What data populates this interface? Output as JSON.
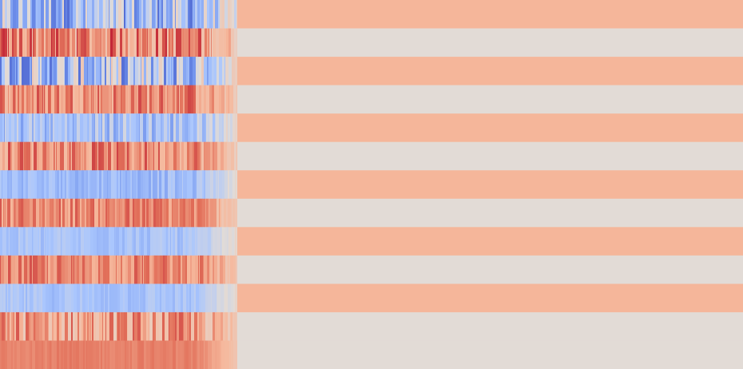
{
  "chart_data": {
    "type": "heatmap",
    "title": "",
    "xlabel": "",
    "ylabel": "",
    "colormap": "coolwarm",
    "value_range": [
      -1,
      1
    ],
    "palette": {
      "blue_strong": "#3b5fd9",
      "blue_mid": "#7ea2f2",
      "blue_light": "#b9cdfb",
      "neutral": "#e2dbd6",
      "salmon": "#f6b89c",
      "red_mid": "#e0705a",
      "red_strong": "#b51d2a"
    },
    "n_rows": 13,
    "n_cols": 930,
    "active_cols": 297,
    "rows": [
      {
        "active_mean": -0.35,
        "active_variance": 0.45,
        "tail_value": 0.36
      },
      {
        "active_mean": 0.55,
        "active_variance": 0.35,
        "tail_value": 0.0
      },
      {
        "active_mean": -0.3,
        "active_variance": 0.5,
        "tail_value": 0.36
      },
      {
        "active_mean": 0.55,
        "active_variance": 0.25,
        "tail_value": 0.0
      },
      {
        "active_mean": -0.3,
        "active_variance": 0.25,
        "tail_value": 0.36
      },
      {
        "active_mean": 0.55,
        "active_variance": 0.25,
        "tail_value": 0.0
      },
      {
        "active_mean": -0.35,
        "active_variance": 0.12,
        "tail_value": 0.36
      },
      {
        "active_mean": 0.55,
        "active_variance": 0.2,
        "tail_value": 0.0
      },
      {
        "active_mean": -0.3,
        "active_variance": 0.1,
        "tail_value": 0.36
      },
      {
        "active_mean": 0.55,
        "active_variance": 0.2,
        "tail_value": 0.0
      },
      {
        "active_mean": -0.3,
        "active_variance": 0.1,
        "tail_value": 0.36
      },
      {
        "active_mean": 0.45,
        "active_variance": 0.3,
        "tail_value": 0.0
      },
      {
        "active_mean": 0.58,
        "active_variance": 0.05,
        "tail_value": 0.0
      }
    ]
  }
}
